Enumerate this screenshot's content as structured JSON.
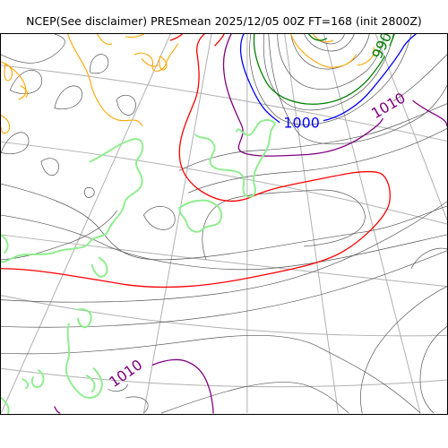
{
  "title": "NCEP(See disclaimer) PRESmean 2025/12/05 00Z FT=168 (init 2800Z)",
  "contour_labels": [
    {
      "id": "lbl-1000",
      "text": "1000",
      "color": "#0000ff"
    },
    {
      "id": "lbl-1010-east",
      "text": "1010",
      "color": "#800080"
    },
    {
      "id": "lbl-1010-south",
      "text": "1010",
      "color": "#800080"
    },
    {
      "id": "lbl-990",
      "text": "990",
      "color": "#008000"
    }
  ],
  "colors": {
    "grid": "#b0b0b0",
    "thin_isobar": "#555555",
    "coastline": "#90ee90",
    "isobar_990": "#008000",
    "isobar_1000": "#0000ff",
    "isobar_1010": "#800080",
    "isobar_1020": "#ff0000",
    "high_contour": "#ffa500"
  }
}
